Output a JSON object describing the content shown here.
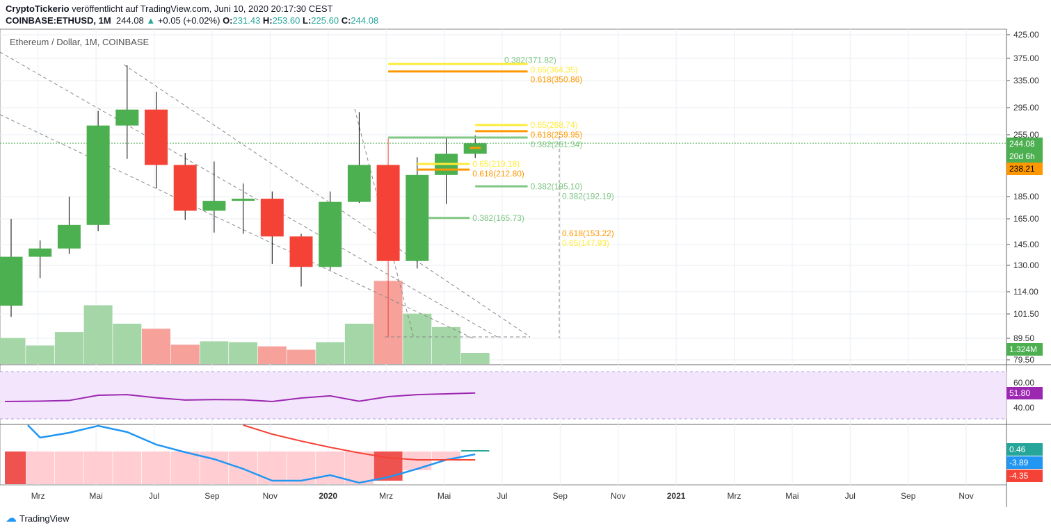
{
  "header": {
    "author": "CryptoTickerio",
    "published": "veröffentlicht auf TradingView.com, Juni 10, 2020 20:17:30 CEST",
    "symbol": "COINBASE:ETHUSD, 1M",
    "last": "244.08",
    "change": "+0.05 (+0.02%)",
    "o_label": "O:",
    "o": "231.43",
    "h_label": "H:",
    "h": "253.60",
    "l_label": "L:",
    "l": "225.60",
    "c_label": "C:",
    "c": "244.08"
  },
  "legend": "Ethereum / Dollar, 1M, COINBASE",
  "footer": {
    "brand": "TradingView"
  },
  "colors": {
    "up": "#4caf50",
    "down": "#f44336",
    "volUp": "#a5d6a7",
    "volDown": "#f7a19b",
    "rsi": "#9c27b0",
    "macd": "#2196f3",
    "signal": "#f44336"
  },
  "chart_data": {
    "type": "candlestick",
    "title": "Ethereum / Dollar, 1M, COINBASE",
    "months": [
      "Feb 2019",
      "Mar 2019",
      "Apr 2019",
      "May 2019",
      "Jun 2019",
      "Jul 2019",
      "Aug 2019",
      "Sep 2019",
      "Oct 2019",
      "Nov 2019",
      "Dec 2019",
      "Jan 2020",
      "Feb 2020",
      "Mar 2020",
      "Apr 2020",
      "May 2020",
      "Jun 2020"
    ],
    "ohlc": [
      [
        106,
        165,
        100,
        136
      ],
      [
        136,
        148,
        122,
        142
      ],
      [
        142,
        185,
        138,
        160
      ],
      [
        160,
        290,
        155,
        268
      ],
      [
        268,
        362,
        225,
        292
      ],
      [
        292,
        318,
        193,
        218
      ],
      [
        218,
        232,
        164,
        172
      ],
      [
        172,
        222,
        154,
        181
      ],
      [
        181,
        198,
        153,
        183
      ],
      [
        183,
        190,
        131,
        151
      ],
      [
        151,
        153,
        117,
        129
      ],
      [
        129,
        190,
        127,
        180
      ],
      [
        180,
        288,
        179,
        218
      ],
      [
        218,
        250,
        90,
        133
      ],
      [
        133,
        227,
        128,
        207
      ],
      [
        207,
        250,
        178,
        231
      ],
      [
        231,
        254,
        226,
        244
      ]
    ],
    "volume_m": [
      3.1,
      2.2,
      3.8,
      7.0,
      4.8,
      4.2,
      2.3,
      2.7,
      2.6,
      2.1,
      1.7,
      2.6,
      4.8,
      9.9,
      6.0,
      4.4,
      1.324
    ],
    "price_ticks": [
      "425.00",
      "375.00",
      "335.00",
      "295.00",
      "255.00",
      "185.00",
      "165.00",
      "145.00",
      "130.00",
      "114.00",
      "101.50",
      "89.50",
      "79.50"
    ],
    "price_labels": {
      "last": "244.08",
      "countdown": "20d 6h",
      "line": "238.21",
      "volume": "1.324M"
    },
    "time_labels": [
      "Mrz",
      "Mai",
      "Jul",
      "Sep",
      "Nov",
      "2020",
      "Mrz",
      "Mai",
      "Jul",
      "Sep",
      "Nov",
      "2021",
      "Mrz",
      "Mai",
      "Jul",
      "Sep",
      "Nov"
    ],
    "fib": [
      {
        "label": "0.382(371.82)",
        "price": 371.82,
        "color": "#81c784",
        "from": 13,
        "to": 13,
        "line": false
      },
      {
        "label": "0.65(364.35)",
        "price": 364.35,
        "color": "#ffeb3b",
        "from": 13,
        "to": 18,
        "line": true
      },
      {
        "label": "0.618(350.86)",
        "price": 350.86,
        "color": "#ff9800",
        "from": 13,
        "to": 18,
        "line": true
      },
      {
        "label": "0.65(268.74)",
        "price": 268.74,
        "color": "#ffeb3b",
        "from": 16,
        "to": 18,
        "line": true
      },
      {
        "label": "0.618(259.95)",
        "price": 259.95,
        "color": "#ff9800",
        "from": 16,
        "to": 18,
        "line": true
      },
      {
        "label": "0.382(251.34)",
        "price": 251.34,
        "color": "#81c784",
        "from": 13,
        "to": 18,
        "line": true
      },
      {
        "label": "0.65(219.18)",
        "price": 219.18,
        "color": "#ffeb3b",
        "from": 14,
        "to": 16,
        "line": true
      },
      {
        "label": "0.618(212.80)",
        "price": 212.8,
        "color": "#ff9800",
        "from": 14,
        "to": 16,
        "line": true
      },
      {
        "label": "0.382(195.10)",
        "price": 195.1,
        "color": "#81c784",
        "from": 16,
        "to": 18,
        "line": true
      },
      {
        "label": "0.382(192.19)",
        "price": 192.19,
        "color": "#81c784",
        "from": 19,
        "to": 19,
        "line": false
      },
      {
        "label": "0.382(165.73)",
        "price": 165.73,
        "color": "#81c784",
        "from": 14.4,
        "to": 16,
        "line": true
      },
      {
        "label": "0.618(153.22)",
        "price": 153.22,
        "color": "#ff9800",
        "from": 19,
        "to": 19,
        "line": false
      },
      {
        "label": "0.65(147.93)",
        "price": 147.93,
        "color": "#ffeb3b",
        "from": 19,
        "to": 19,
        "line": false
      }
    ],
    "rsi": {
      "ticks": [
        "60.00",
        "40.00"
      ],
      "value_label": "51.80",
      "values": [
        45.0,
        45.3,
        45.8,
        50.0,
        50.5,
        48.0,
        46.2,
        46.5,
        46.4,
        45.0,
        47.8,
        49.5,
        45.2,
        48.9,
        50.5,
        51.1,
        51.8
      ]
    },
    "macd": {
      "labels": [
        "0.46",
        "-3.89",
        "-4.35"
      ],
      "macd": [
        5.5,
        2.0,
        2.7,
        3.7,
        2.8,
        1.0,
        -0.1,
        -1.1,
        -2.5,
        -4.2,
        -4.2,
        -3.4,
        -4.5,
        -3.7,
        -2.5,
        -1.2,
        -0.4
      ],
      "signal": [
        null,
        null,
        null,
        null,
        null,
        null,
        null,
        null,
        3.8,
        2.5,
        1.5,
        0.6,
        -0.2,
        -0.9,
        -1.2,
        -1.2,
        -1.2
      ],
      "hist": [
        -4.7,
        -4.7,
        -4.7,
        -4.7,
        -4.7,
        -4.7,
        -4.7,
        -4.7,
        -4.7,
        -4.7,
        -4.7,
        -4.7,
        -4.7,
        -4.2,
        -2.7,
        -1.3,
        0.1
      ]
    }
  }
}
